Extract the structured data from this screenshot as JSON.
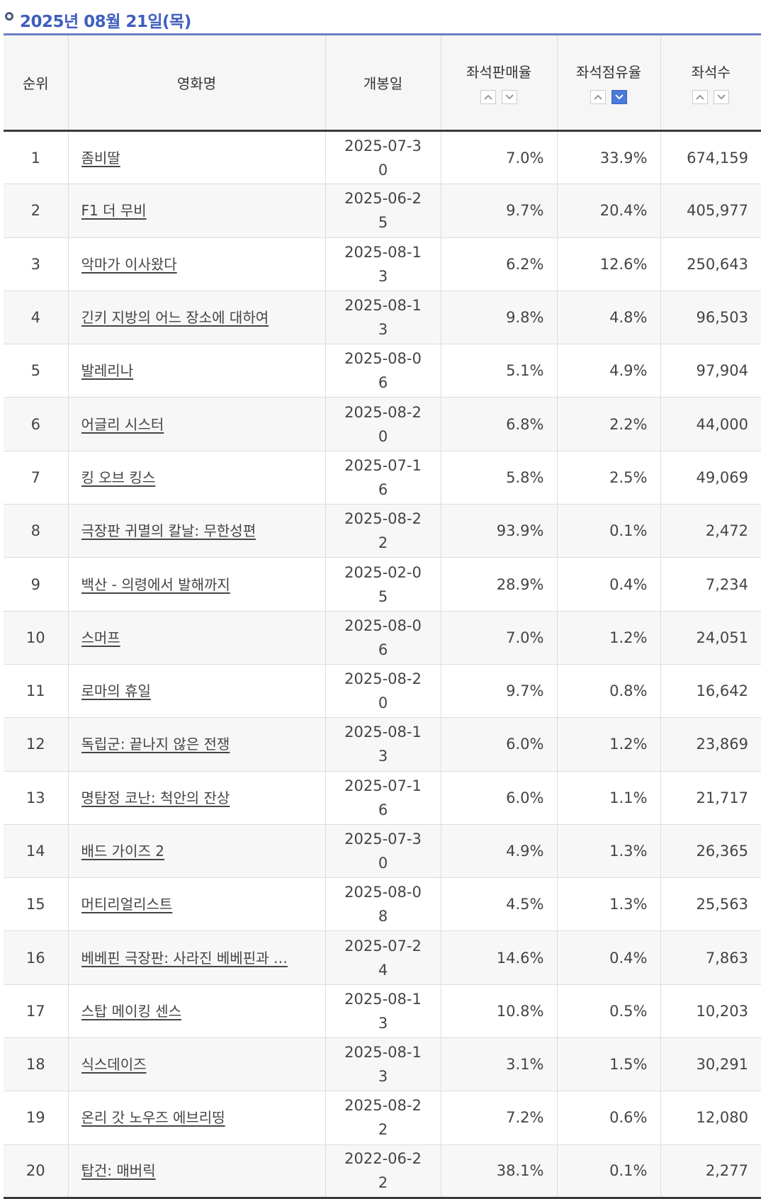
{
  "date_header": "2025년 08월 21일(목)",
  "columns": {
    "rank": "순위",
    "title": "영화명",
    "release": "개봉일",
    "sales_rate": "좌석판매율",
    "share_rate": "좌석점유율",
    "seats": "좌석수"
  },
  "rows": [
    {
      "rank": "1",
      "title": "좀비딸",
      "release": "2025-07-30",
      "sales_rate": "7.0%",
      "share_rate": "33.9%",
      "seats": "674,159"
    },
    {
      "rank": "2",
      "title": "F1 더 무비",
      "release": "2025-06-25",
      "sales_rate": "9.7%",
      "share_rate": "20.4%",
      "seats": "405,977"
    },
    {
      "rank": "3",
      "title": "악마가 이사왔다",
      "release": "2025-08-13",
      "sales_rate": "6.2%",
      "share_rate": "12.6%",
      "seats": "250,643"
    },
    {
      "rank": "4",
      "title": "긴키 지방의 어느 장소에 대하여",
      "release": "2025-08-13",
      "sales_rate": "9.8%",
      "share_rate": "4.8%",
      "seats": "96,503"
    },
    {
      "rank": "5",
      "title": "발레리나",
      "release": "2025-08-06",
      "sales_rate": "5.1%",
      "share_rate": "4.9%",
      "seats": "97,904"
    },
    {
      "rank": "6",
      "title": "어글리 시스터",
      "release": "2025-08-20",
      "sales_rate": "6.8%",
      "share_rate": "2.2%",
      "seats": "44,000"
    },
    {
      "rank": "7",
      "title": "킹 오브 킹스",
      "release": "2025-07-16",
      "sales_rate": "5.8%",
      "share_rate": "2.5%",
      "seats": "49,069"
    },
    {
      "rank": "8",
      "title": "극장판 귀멸의 칼날: 무한성편",
      "release": "2025-08-22",
      "sales_rate": "93.9%",
      "share_rate": "0.1%",
      "seats": "2,472"
    },
    {
      "rank": "9",
      "title": "백산 - 의령에서 발해까지",
      "release": "2025-02-05",
      "sales_rate": "28.9%",
      "share_rate": "0.4%",
      "seats": "7,234"
    },
    {
      "rank": "10",
      "title": "스머프",
      "release": "2025-08-06",
      "sales_rate": "7.0%",
      "share_rate": "1.2%",
      "seats": "24,051"
    },
    {
      "rank": "11",
      "title": "로마의 휴일",
      "release": "2025-08-20",
      "sales_rate": "9.7%",
      "share_rate": "0.8%",
      "seats": "16,642"
    },
    {
      "rank": "12",
      "title": "독립군: 끝나지 않은 전쟁",
      "release": "2025-08-13",
      "sales_rate": "6.0%",
      "share_rate": "1.2%",
      "seats": "23,869"
    },
    {
      "rank": "13",
      "title": "명탐정 코난: 척안의 잔상",
      "release": "2025-07-16",
      "sales_rate": "6.0%",
      "share_rate": "1.1%",
      "seats": "21,717"
    },
    {
      "rank": "14",
      "title": "배드 가이즈 2",
      "release": "2025-07-30",
      "sales_rate": "4.9%",
      "share_rate": "1.3%",
      "seats": "26,365"
    },
    {
      "rank": "15",
      "title": "머티리얼리스트",
      "release": "2025-08-08",
      "sales_rate": "4.5%",
      "share_rate": "1.3%",
      "seats": "25,563"
    },
    {
      "rank": "16",
      "title": "베베핀 극장판: 사라진 베베핀과 …",
      "release": "2025-07-24",
      "sales_rate": "14.6%",
      "share_rate": "0.4%",
      "seats": "7,863"
    },
    {
      "rank": "17",
      "title": "스탑 메이킹 센스",
      "release": "2025-08-13",
      "sales_rate": "10.8%",
      "share_rate": "0.5%",
      "seats": "10,203"
    },
    {
      "rank": "18",
      "title": "식스데이즈",
      "release": "2025-08-13",
      "sales_rate": "3.1%",
      "share_rate": "1.5%",
      "seats": "30,291"
    },
    {
      "rank": "19",
      "title": "온리 갓 노우즈 에브리띵",
      "release": "2025-08-22",
      "sales_rate": "7.2%",
      "share_rate": "0.6%",
      "seats": "12,080"
    },
    {
      "rank": "20",
      "title": "탑건: 매버릭",
      "release": "2022-06-22",
      "sales_rate": "38.1%",
      "share_rate": "0.1%",
      "seats": "2,277"
    }
  ],
  "sort": {
    "active_column": "share_rate",
    "direction": "desc"
  },
  "colors": {
    "accent": "#3f5fbf",
    "active_sort": "#4a7bd8"
  }
}
